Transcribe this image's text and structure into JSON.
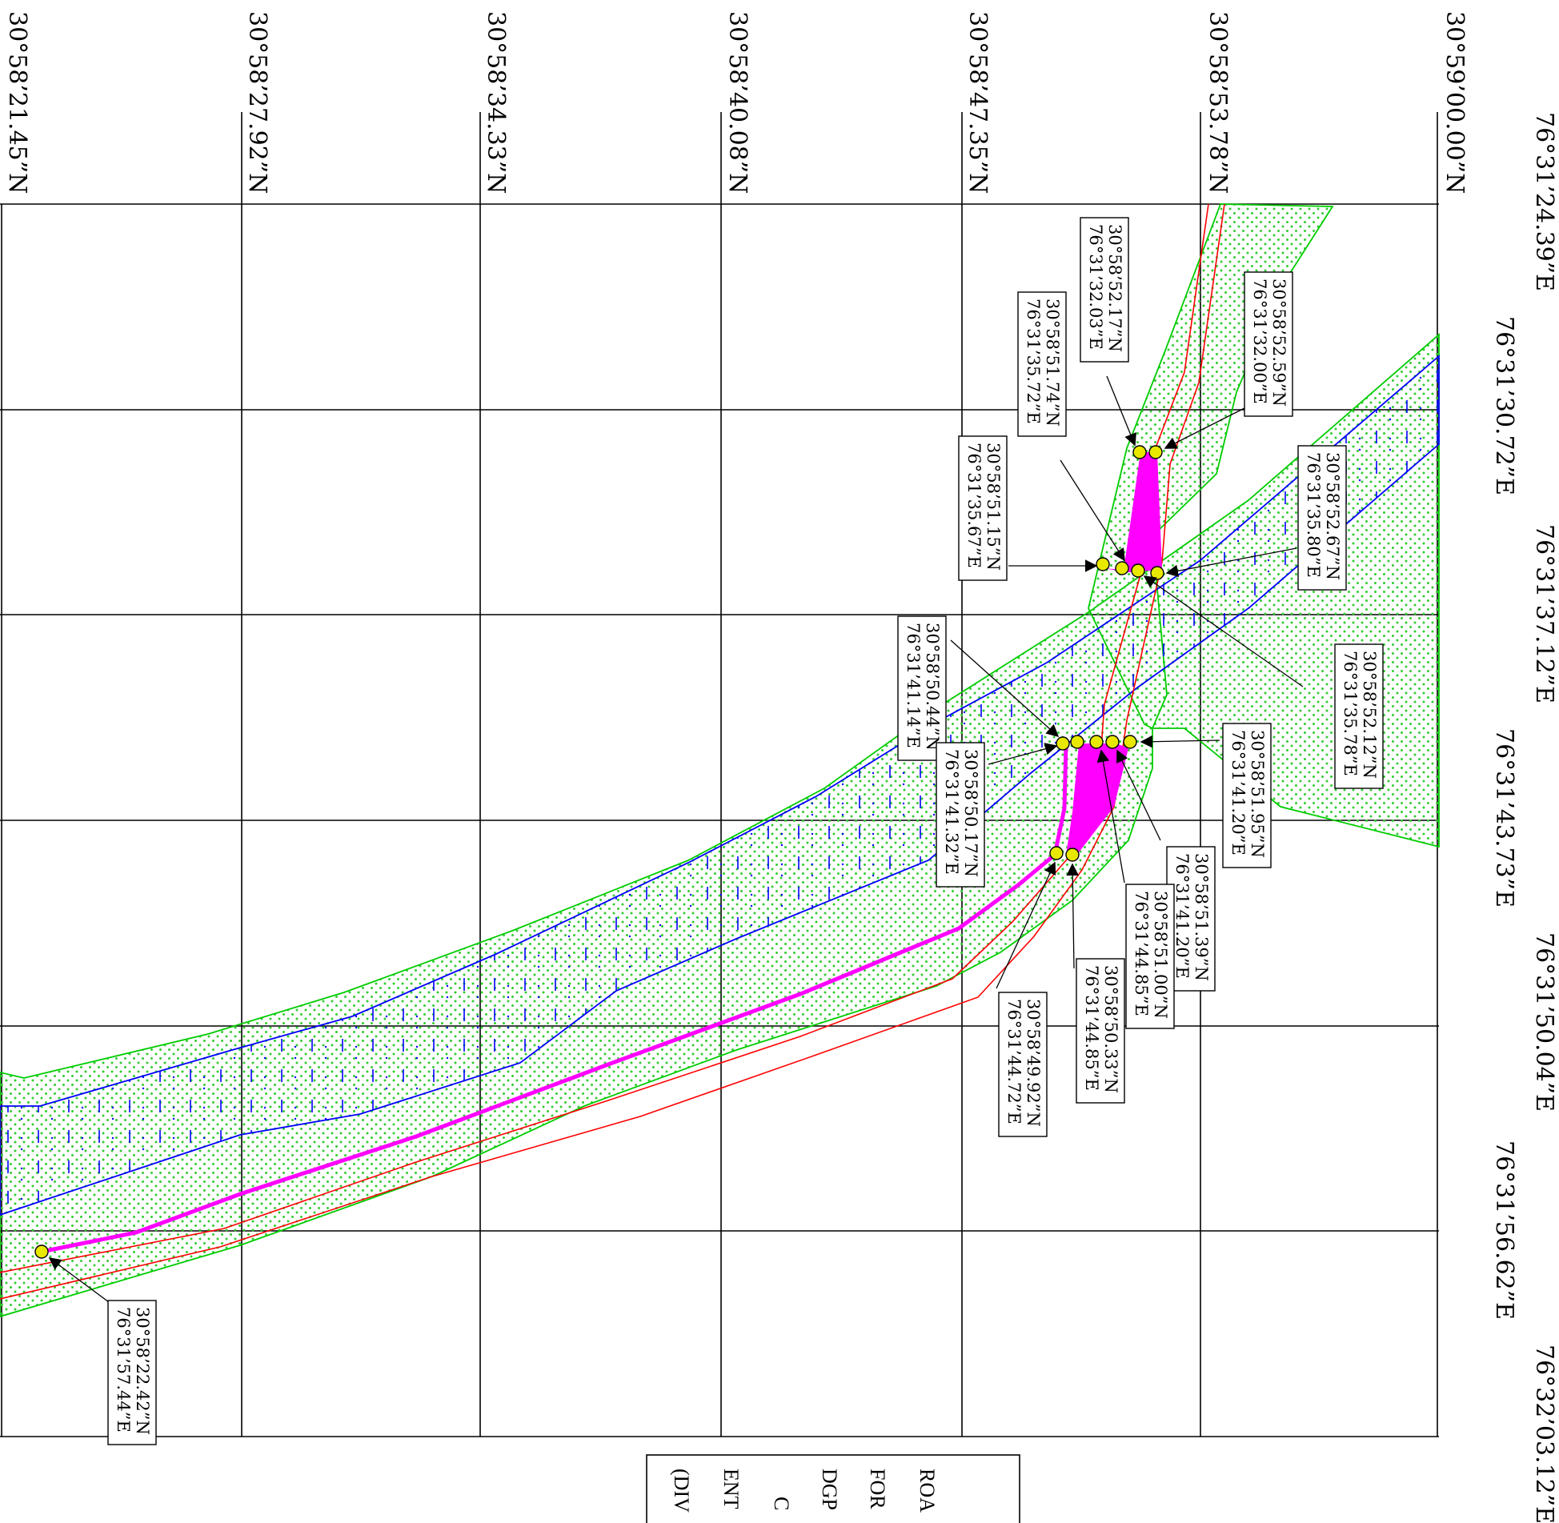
{
  "map": {
    "grid_north_labels": [
      "30°58’21.45”N",
      "30°58’27.92”N",
      "30°58’34.33”N",
      "30°58’40.08”N",
      "30°58’47.35”N",
      "30°58’53.78”N",
      "30°59’00.00”N"
    ],
    "grid_east_labels": [
      "76°31’24.39”E",
      "76°31’30.72”E",
      "76°31’37.12”E",
      "76°31’43.73”E",
      "76°31’50.04”E",
      "76°31’56.62”E",
      "76°32’03.12”E"
    ],
    "callouts": [
      {
        "lat": "30°58’52.17”N",
        "lon": "76°31’32.03”E"
      },
      {
        "lat": "30°58’52.59”N",
        "lon": "76°31’32.00”E"
      },
      {
        "lat": "30°58’51.74”N",
        "lon": "76°31’35.72”E"
      },
      {
        "lat": "30°58’51.15”N",
        "lon": "76°31’35.67”E"
      },
      {
        "lat": "30°58’52.67”N",
        "lon": "76°31’35.80”E"
      },
      {
        "lat": "30°58’52.12”N",
        "lon": "76°31’35.78”E"
      },
      {
        "lat": "30°58’50.44”N",
        "lon": "76°31’41.14”E"
      },
      {
        "lat": "30°58’50.17”N",
        "lon": "76°31’41.32”E"
      },
      {
        "lat": "30°58’51.95”N",
        "lon": "76°31’41.20”E"
      },
      {
        "lat": "30°58’51.39”N",
        "lon": "76°31’41.20”E"
      },
      {
        "lat": "30°58’51.00”N",
        "lon": "76°31’44.85”E"
      },
      {
        "lat": "30°58’50.33”N",
        "lon": "76°31’44.85”E"
      },
      {
        "lat": "30°58’49.92”N",
        "lon": "76°31’44.72”E"
      },
      {
        "lat": "30°58’22.42”N",
        "lon": "76°31’57.44”E"
      }
    ],
    "title_lines": [
      "ROA",
      "FOR",
      "DGP",
      "C",
      "ENT",
      "(DIV"
    ],
    "colors": {
      "grid": "#000000",
      "road_edge": "#ff0000",
      "row_boundary": "#00cc00",
      "row_fill": "#33dd33",
      "water_edge": "#0000ff",
      "access_path": "#ff00ff",
      "control_point": "#e8e800"
    }
  }
}
